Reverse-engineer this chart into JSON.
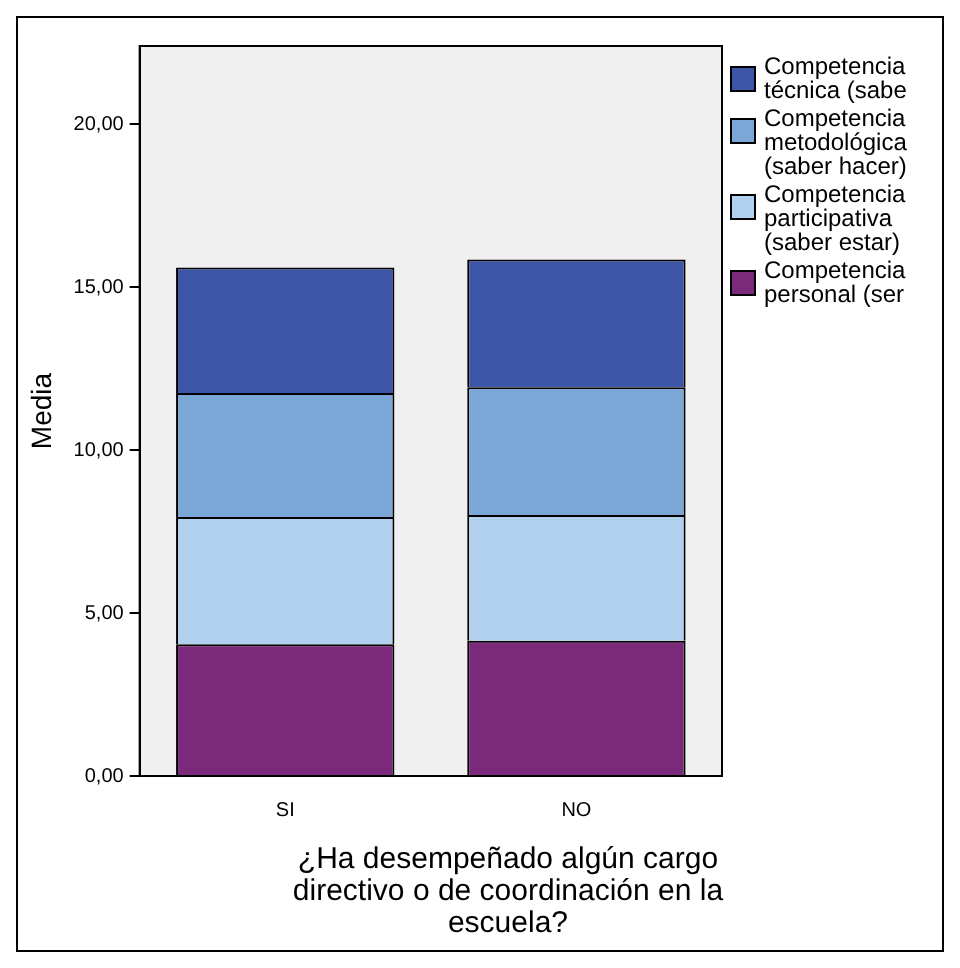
{
  "chart_data": {
    "type": "bar",
    "stacked": true,
    "xlabel": "¿Ha desempeñado algún cargo directivo o de coordinación en la escuela?",
    "ylabel": "Media",
    "categories": [
      "SI",
      "NO"
    ],
    "series": [
      {
        "name": "Competencia personal (ser",
        "color": "#7b2a7b",
        "values": [
          4.04,
          4.15
        ]
      },
      {
        "name": "Competencia participativa (saber estar)",
        "color": "#b1d1ef",
        "values": [
          3.91,
          3.86
        ]
      },
      {
        "name": "Competencia metodológica (saber hacer)",
        "color": "#7aa7d6",
        "values": [
          3.8,
          3.92
        ]
      },
      {
        "name": "Competencia técnica (sabe",
        "color": "#3d56a8",
        "values": [
          3.85,
          3.92
        ]
      }
    ],
    "ylim": [
      0,
      22.4
    ],
    "yticks": [
      {
        "value": 0,
        "label": "0,00"
      },
      {
        "value": 5,
        "label": "5,00"
      },
      {
        "value": 10,
        "label": "10,00"
      },
      {
        "value": 15,
        "label": "15,00"
      },
      {
        "value": 20,
        "label": "20,00"
      }
    ],
    "grid": false,
    "legend": "top right"
  }
}
